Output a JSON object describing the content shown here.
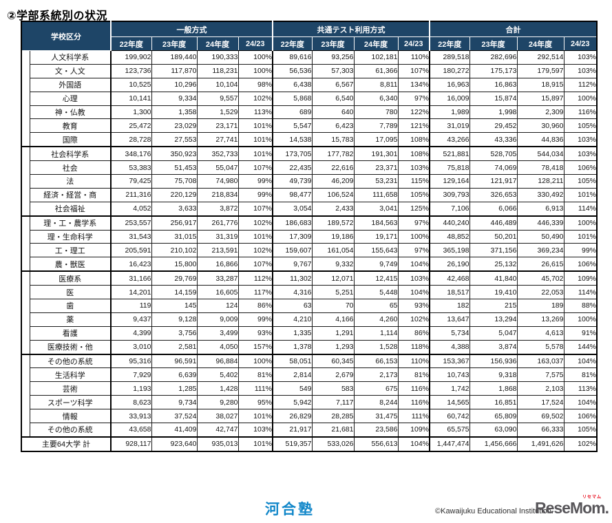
{
  "page_title": "②学部系統別の状況",
  "colors": {
    "header_bg": "#1e4567",
    "kawaijuku_blue": "#1187c9",
    "resemom_gray": "#58565a",
    "resemom_red": "#e60012"
  },
  "table": {
    "corner_header": "学校区分",
    "sections": [
      {
        "label": "一般方式",
        "sub": [
          "22年度",
          "23年度",
          "24年度",
          "24/23"
        ]
      },
      {
        "label": "共通テスト利用方式",
        "sub": [
          "22年度",
          "23年度",
          "24年度",
          "24/23"
        ]
      },
      {
        "label": "合計",
        "sub": [
          "22年度",
          "23年度",
          "24年度",
          "24/23"
        ]
      }
    ],
    "groups": [
      {
        "rows": [
          {
            "label": "人文科学系",
            "values": [
              "199,902",
              "189,440",
              "190,333",
              "100%",
              "89,616",
              "93,256",
              "102,181",
              "110%",
              "289,518",
              "282,696",
              "292,514",
              "103%"
            ]
          },
          {
            "label": "文・人文",
            "values": [
              "123,736",
              "117,870",
              "118,231",
              "100%",
              "56,536",
              "57,303",
              "61,366",
              "107%",
              "180,272",
              "175,173",
              "179,597",
              "103%"
            ]
          },
          {
            "label": "外国語",
            "values": [
              "10,525",
              "10,296",
              "10,104",
              "98%",
              "6,438",
              "6,567",
              "8,811",
              "134%",
              "16,963",
              "16,863",
              "18,915",
              "112%"
            ]
          },
          {
            "label": "心理",
            "values": [
              "10,141",
              "9,334",
              "9,557",
              "102%",
              "5,868",
              "6,540",
              "6,340",
              "97%",
              "16,009",
              "15,874",
              "15,897",
              "100%"
            ]
          },
          {
            "label": "神・仏教",
            "values": [
              "1,300",
              "1,358",
              "1,529",
              "113%",
              "689",
              "640",
              "780",
              "122%",
              "1,989",
              "1,998",
              "2,309",
              "116%"
            ]
          },
          {
            "label": "教育",
            "values": [
              "25,472",
              "23,029",
              "23,171",
              "101%",
              "5,547",
              "6,423",
              "7,789",
              "121%",
              "31,019",
              "29,452",
              "30,960",
              "105%"
            ]
          },
          {
            "label": "国際",
            "values": [
              "28,728",
              "27,553",
              "27,741",
              "101%",
              "14,538",
              "15,783",
              "17,095",
              "108%",
              "43,266",
              "43,336",
              "44,836",
              "103%"
            ]
          }
        ]
      },
      {
        "rows": [
          {
            "label": "社会科学系",
            "values": [
              "348,176",
              "350,923",
              "352,733",
              "101%",
              "173,705",
              "177,782",
              "191,301",
              "108%",
              "521,881",
              "528,705",
              "544,034",
              "103%"
            ]
          },
          {
            "label": "社会",
            "values": [
              "53,383",
              "51,453",
              "55,047",
              "107%",
              "22,435",
              "22,616",
              "23,371",
              "103%",
              "75,818",
              "74,069",
              "78,418",
              "106%"
            ]
          },
          {
            "label": "法",
            "values": [
              "79,425",
              "75,708",
              "74,980",
              "99%",
              "49,739",
              "46,209",
              "53,231",
              "115%",
              "129,164",
              "121,917",
              "128,211",
              "105%"
            ]
          },
          {
            "label": "経済・経営・商",
            "values": [
              "211,316",
              "220,129",
              "218,834",
              "99%",
              "98,477",
              "106,524",
              "111,658",
              "105%",
              "309,793",
              "326,653",
              "330,492",
              "101%"
            ]
          },
          {
            "label": "社会福祉",
            "values": [
              "4,052",
              "3,633",
              "3,872",
              "107%",
              "3,054",
              "2,433",
              "3,041",
              "125%",
              "7,106",
              "6,066",
              "6,913",
              "114%"
            ]
          }
        ]
      },
      {
        "rows": [
          {
            "label": "理・工・農学系",
            "values": [
              "253,557",
              "256,917",
              "261,776",
              "102%",
              "186,683",
              "189,572",
              "184,563",
              "97%",
              "440,240",
              "446,489",
              "446,339",
              "100%"
            ]
          },
          {
            "label": "理・生命科学",
            "values": [
              "31,543",
              "31,015",
              "31,319",
              "101%",
              "17,309",
              "19,186",
              "19,171",
              "100%",
              "48,852",
              "50,201",
              "50,490",
              "101%"
            ]
          },
          {
            "label": "工・理工",
            "values": [
              "205,591",
              "210,102",
              "213,591",
              "102%",
              "159,607",
              "161,054",
              "155,643",
              "97%",
              "365,198",
              "371,156",
              "369,234",
              "99%"
            ]
          },
          {
            "label": "農・獣医",
            "values": [
              "16,423",
              "15,800",
              "16,866",
              "107%",
              "9,767",
              "9,332",
              "9,749",
              "104%",
              "26,190",
              "25,132",
              "26,615",
              "106%"
            ]
          }
        ]
      },
      {
        "rows": [
          {
            "label": "医療系",
            "values": [
              "31,166",
              "29,769",
              "33,287",
              "112%",
              "11,302",
              "12,071",
              "12,415",
              "103%",
              "42,468",
              "41,840",
              "45,702",
              "109%"
            ]
          },
          {
            "label": "医",
            "values": [
              "14,201",
              "14,159",
              "16,605",
              "117%",
              "4,316",
              "5,251",
              "5,448",
              "104%",
              "18,517",
              "19,410",
              "22,053",
              "114%"
            ]
          },
          {
            "label": "歯",
            "values": [
              "119",
              "145",
              "124",
              "86%",
              "63",
              "70",
              "65",
              "93%",
              "182",
              "215",
              "189",
              "88%"
            ]
          },
          {
            "label": "薬",
            "values": [
              "9,437",
              "9,128",
              "9,009",
              "99%",
              "4,210",
              "4,166",
              "4,260",
              "102%",
              "13,647",
              "13,294",
              "13,269",
              "100%"
            ]
          },
          {
            "label": "看護",
            "values": [
              "4,399",
              "3,756",
              "3,499",
              "93%",
              "1,335",
              "1,291",
              "1,114",
              "86%",
              "5,734",
              "5,047",
              "4,613",
              "91%"
            ]
          },
          {
            "label": "医療技術・他",
            "values": [
              "3,010",
              "2,581",
              "4,050",
              "157%",
              "1,378",
              "1,293",
              "1,528",
              "118%",
              "4,388",
              "3,874",
              "5,578",
              "144%"
            ]
          }
        ]
      },
      {
        "rows": [
          {
            "label": "その他の系統",
            "values": [
              "95,316",
              "96,591",
              "96,884",
              "100%",
              "58,051",
              "60,345",
              "66,153",
              "110%",
              "153,367",
              "156,936",
              "163,037",
              "104%"
            ]
          },
          {
            "label": "生活科学",
            "values": [
              "7,929",
              "6,639",
              "5,402",
              "81%",
              "2,814",
              "2,679",
              "2,173",
              "81%",
              "10,743",
              "9,318",
              "7,575",
              "81%"
            ]
          },
          {
            "label": "芸術",
            "values": [
              "1,193",
              "1,285",
              "1,428",
              "111%",
              "549",
              "583",
              "675",
              "116%",
              "1,742",
              "1,868",
              "2,103",
              "113%"
            ]
          },
          {
            "label": "スポーツ科学",
            "values": [
              "8,623",
              "9,734",
              "9,280",
              "95%",
              "5,942",
              "7,117",
              "8,244",
              "116%",
              "14,565",
              "16,851",
              "17,524",
              "104%"
            ]
          },
          {
            "label": "情報",
            "values": [
              "33,913",
              "37,524",
              "38,027",
              "101%",
              "26,829",
              "28,285",
              "31,475",
              "111%",
              "60,742",
              "65,809",
              "69,502",
              "106%"
            ]
          },
          {
            "label": "その他の系統",
            "values": [
              "43,658",
              "41,409",
              "42,747",
              "103%",
              "21,917",
              "21,681",
              "23,586",
              "109%",
              "65,575",
              "63,090",
              "66,333",
              "105%"
            ]
          }
        ]
      },
      {
        "full_span": true,
        "rows": [
          {
            "label": "主要64大学 計",
            "values": [
              "928,117",
              "923,640",
              "935,013",
              "101%",
              "519,357",
              "533,026",
              "556,613",
              "104%",
              "1,447,474",
              "1,456,666",
              "1,491,626",
              "102%"
            ]
          }
        ]
      }
    ]
  },
  "footer": {
    "kawaijuku_logo": "河合塾",
    "copyright": "©Kawaijuku Educational Institution.",
    "resemom_logo": "ReseMom.",
    "resemom_ruby": "リセマム"
  }
}
